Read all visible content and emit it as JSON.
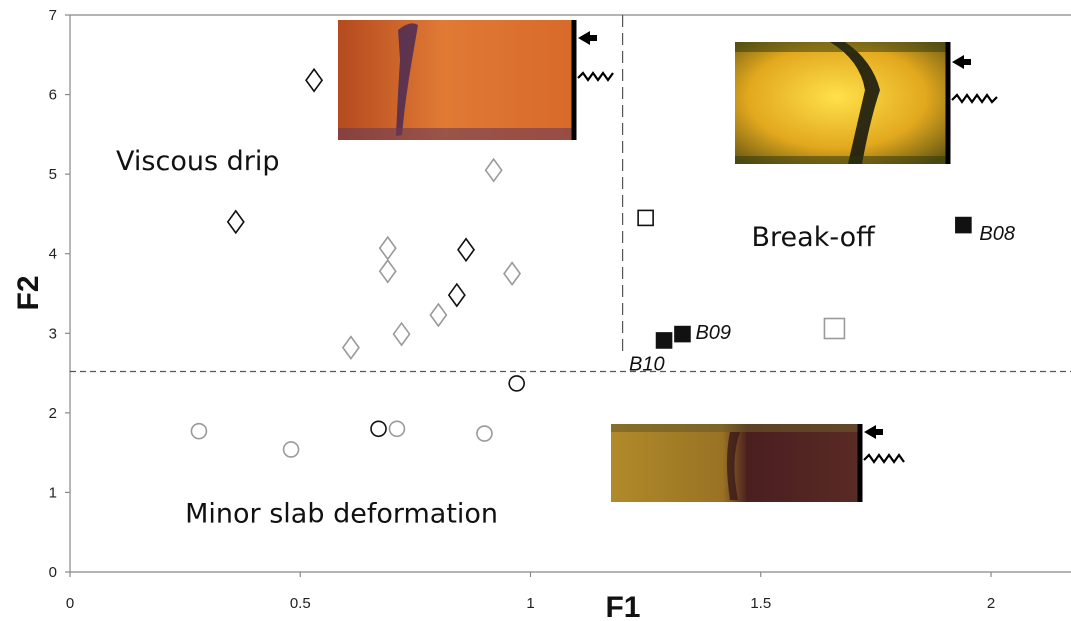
{
  "chart_data": {
    "type": "scatter",
    "xlabel": "F1",
    "ylabel": "F2",
    "xlim": [
      0,
      2.18
    ],
    "ylim": [
      0,
      7
    ],
    "xticks": [
      {
        "v": 0,
        "label": "0"
      },
      {
        "v": 0.5,
        "label": "0.5"
      },
      {
        "v": 1,
        "label": "1"
      },
      {
        "v": 1.5,
        "label": "1.5"
      },
      {
        "v": 2,
        "label": "2"
      }
    ],
    "yticks": [
      {
        "v": 0,
        "label": "0"
      },
      {
        "v": 1,
        "label": "1"
      },
      {
        "v": 2,
        "label": "2"
      },
      {
        "v": 3,
        "label": "3"
      },
      {
        "v": 4,
        "label": "4"
      },
      {
        "v": 5,
        "label": "5"
      },
      {
        "v": 6,
        "label": "6"
      },
      {
        "v": 7,
        "label": "7"
      }
    ],
    "threshold_lines": {
      "f1": 1.2,
      "f2": 2.52
    },
    "regions": [
      {
        "text": "Viscous drip",
        "x": 0.1,
        "y": 5.05
      },
      {
        "text": "Break-off",
        "x": 1.48,
        "y": 4.1
      },
      {
        "text": "Minor slab deformation",
        "x": 0.25,
        "y": 0.62
      }
    ],
    "series": [
      {
        "marker": "diamond",
        "style": "black",
        "points": [
          {
            "x": 0.53,
            "y": 6.18
          },
          {
            "x": 0.36,
            "y": 4.4
          },
          {
            "x": 0.86,
            "y": 4.05
          },
          {
            "x": 0.84,
            "y": 3.48
          }
        ]
      },
      {
        "marker": "diamond",
        "style": "gray",
        "points": [
          {
            "x": 0.92,
            "y": 5.05
          },
          {
            "x": 0.69,
            "y": 4.07
          },
          {
            "x": 0.69,
            "y": 3.78
          },
          {
            "x": 0.96,
            "y": 3.75
          },
          {
            "x": 0.8,
            "y": 3.23
          },
          {
            "x": 0.72,
            "y": 2.99
          },
          {
            "x": 0.61,
            "y": 2.82
          }
        ]
      },
      {
        "marker": "circle",
        "style": "black",
        "points": [
          {
            "x": 0.97,
            "y": 2.37
          },
          {
            "x": 0.67,
            "y": 1.8
          }
        ]
      },
      {
        "marker": "circle",
        "style": "gray",
        "points": [
          {
            "x": 0.28,
            "y": 1.77
          },
          {
            "x": 0.48,
            "y": 1.54
          },
          {
            "x": 0.71,
            "y": 1.8
          },
          {
            "x": 0.9,
            "y": 1.74
          }
        ]
      },
      {
        "marker": "square",
        "style": "filled",
        "points": [
          {
            "x": 1.94,
            "y": 4.36,
            "label": "B08"
          },
          {
            "x": 1.33,
            "y": 2.99,
            "label": "B09"
          },
          {
            "x": 1.29,
            "y": 2.91,
            "label": "B10"
          }
        ]
      },
      {
        "marker": "square",
        "style": "open-black",
        "points": [
          {
            "x": 1.25,
            "y": 4.45
          }
        ]
      },
      {
        "marker": "square",
        "style": "open-gray",
        "points": [
          {
            "x": 1.66,
            "y": 3.06
          }
        ]
      }
    ],
    "grid": false,
    "colors": {
      "black": "#111111",
      "gray": "#9a9a9a",
      "axis": "#888888"
    }
  }
}
